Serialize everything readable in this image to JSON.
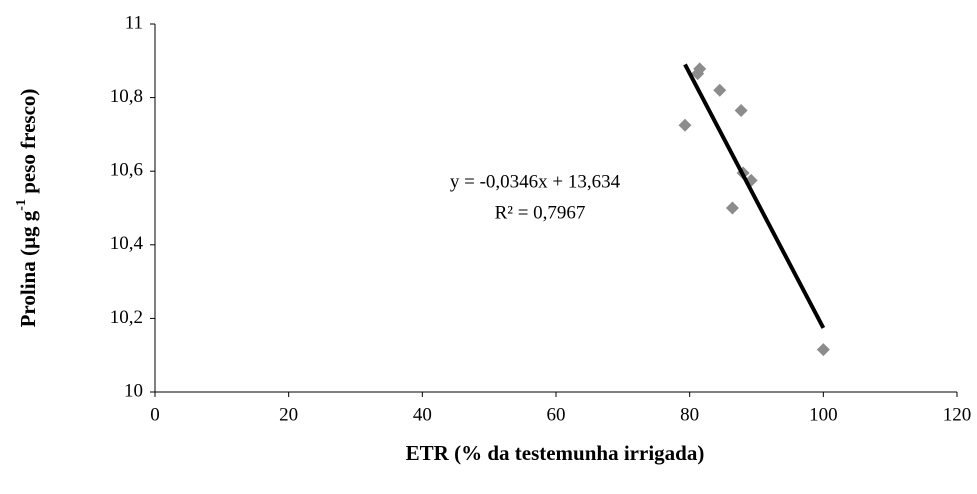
{
  "chart_data": {
    "type": "scatter",
    "x_label": "ETR (% da testemunha irrigada)",
    "y_label": [
      "Prolina (µg g",
      "-1",
      " peso fresco)"
    ],
    "series": [
      {
        "color": "#8c8c8c",
        "x": [
          79.3,
          81.2,
          81.5,
          84.5,
          87.7,
          86.4,
          88.0,
          89.2,
          100
        ],
        "values": [
          10.725,
          10.865,
          10.878,
          10.82,
          10.765,
          10.5,
          10.595,
          10.575,
          10.115
        ]
      }
    ],
    "trendline": {
      "color": "#000000",
      "x": [
        79.3,
        100
      ],
      "values": [
        10.89,
        10.174
      ],
      "equation": "y = -0,0346x + 13,634",
      "r2": "R² = 0,7967"
    },
    "xlim": [
      0,
      120
    ],
    "xticks": [
      0,
      20,
      40,
      60,
      80,
      100,
      120
    ],
    "ylim": [
      10,
      11
    ],
    "yticks": [
      10,
      {
        "value": 10.2,
        "label": "10,2"
      },
      {
        "value": 10.4,
        "label": "10,4"
      },
      {
        "value": 10.6,
        "label": "10,6"
      },
      {
        "value": 10.8,
        "label": "10,8"
      },
      11
    ],
    "grid": false
  }
}
